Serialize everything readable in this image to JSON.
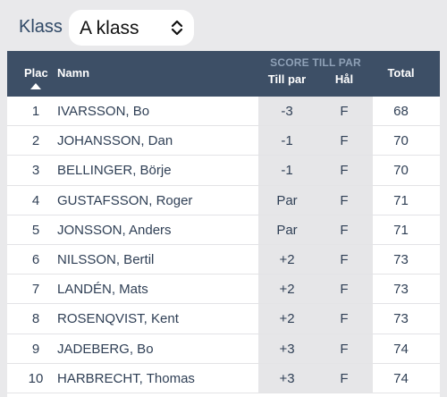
{
  "klass": {
    "label": "Klass",
    "selected": "A klass"
  },
  "table": {
    "headers": {
      "plac": "Plac",
      "namn": "Namn",
      "score_group": "SCORE TILL PAR",
      "till_par": "Till par",
      "hal": "Hål",
      "total": "Total"
    },
    "rows": [
      {
        "plac": "1",
        "namn": "IVARSSON, Bo",
        "till_par": "-3",
        "hal": "F",
        "total": "68"
      },
      {
        "plac": "2",
        "namn": "JOHANSSON, Dan",
        "till_par": "-1",
        "hal": "F",
        "total": "70"
      },
      {
        "plac": "3",
        "namn": "BELLINGER, Börje",
        "till_par": "-1",
        "hal": "F",
        "total": "70"
      },
      {
        "plac": "4",
        "namn": "GUSTAFSSON, Roger",
        "till_par": "Par",
        "hal": "F",
        "total": "71"
      },
      {
        "plac": "5",
        "namn": "JONSSON, Anders",
        "till_par": "Par",
        "hal": "F",
        "total": "71"
      },
      {
        "plac": "6",
        "namn": "NILSSON, Bertil",
        "till_par": "+2",
        "hal": "F",
        "total": "73"
      },
      {
        "plac": "7",
        "namn": "LANDÉN, Mats",
        "till_par": "+2",
        "hal": "F",
        "total": "73"
      },
      {
        "plac": "8",
        "namn": "ROSENQVIST, Kent",
        "till_par": "+2",
        "hal": "F",
        "total": "73"
      },
      {
        "plac": "9",
        "namn": "JADEBERG, Bo",
        "till_par": "+3",
        "hal": "F",
        "total": "74"
      },
      {
        "plac": "10",
        "namn": "HARBRECHT, Thomas",
        "till_par": "+3",
        "hal": "F",
        "total": "74"
      }
    ]
  },
  "colors": {
    "header_bg": "#3d4f66",
    "score_col_bg": "#e6e6e8",
    "text": "#2f3f55"
  },
  "icons": {
    "select": "chevron-up-down-icon",
    "sort": "sort-ascending-icon"
  }
}
